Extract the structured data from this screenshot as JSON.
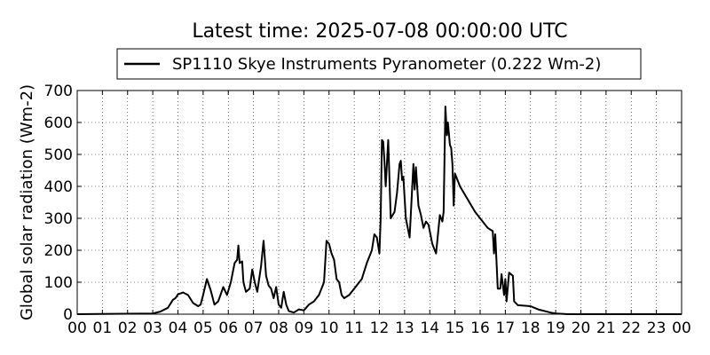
{
  "chart_data": {
    "type": "line",
    "title": "Latest time: 2025-07-08 00:00:00 UTC",
    "ylabel": "Global solar radiation (Wm-2)",
    "x": [
      0,
      3,
      3.3,
      3.6,
      3.8,
      3.9,
      4.0,
      4.2,
      4.4,
      4.6,
      4.8,
      4.9,
      5.0,
      5.15,
      5.3,
      5.45,
      5.6,
      5.8,
      5.95,
      6.1,
      6.25,
      6.35,
      6.4,
      6.45,
      6.55,
      6.6,
      6.7,
      6.85,
      6.95,
      7.05,
      7.15,
      7.3,
      7.4,
      7.5,
      7.6,
      7.7,
      7.8,
      7.9,
      8.0,
      8.1,
      8.2,
      8.3,
      8.4,
      8.6,
      8.8,
      9.0,
      9.2,
      9.4,
      9.6,
      9.8,
      9.9,
      10.0,
      10.1,
      10.2,
      10.3,
      10.4,
      10.5,
      10.6,
      10.8,
      11.0,
      11.3,
      11.5,
      11.7,
      11.8,
      11.9,
      12.0,
      12.05,
      12.1,
      12.15,
      12.2,
      12.25,
      12.35,
      12.45,
      12.6,
      12.7,
      12.8,
      12.85,
      12.9,
      12.95,
      13.05,
      13.2,
      13.35,
      13.4,
      13.45,
      13.55,
      13.65,
      13.75,
      13.85,
      13.95,
      14.1,
      14.25,
      14.4,
      14.5,
      14.55,
      14.62,
      14.68,
      14.72,
      14.8,
      14.85,
      14.9,
      14.95,
      15.0,
      15.2,
      15.5,
      15.8,
      16.1,
      16.3,
      16.5,
      16.55,
      16.6,
      16.7,
      16.8,
      16.85,
      16.95,
      17.0,
      17.05,
      17.15,
      17.3,
      17.35,
      17.5,
      18.0,
      18.3,
      18.8,
      19.0,
      19.5,
      24
    ],
    "series": [
      {
        "name": "SP1110 Skye Instruments Pyranometer (0.222 Wm-2)",
        "color": "#000000",
        "values": [
          0,
          2,
          8,
          20,
          45,
          50,
          62,
          68,
          60,
          35,
          25,
          30,
          60,
          110,
          75,
          30,
          40,
          85,
          60,
          100,
          160,
          170,
          215,
          160,
          165,
          100,
          70,
          80,
          140,
          100,
          70,
          150,
          230,
          120,
          90,
          80,
          50,
          85,
          30,
          20,
          70,
          30,
          10,
          5,
          15,
          12,
          30,
          40,
          60,
          100,
          230,
          220,
          190,
          170,
          110,
          100,
          60,
          50,
          60,
          80,
          110,
          160,
          200,
          250,
          240,
          190,
          300,
          545,
          540,
          480,
          400,
          545,
          300,
          320,
          380,
          470,
          480,
          420,
          430,
          300,
          240,
          470,
          390,
          460,
          340,
          310,
          270,
          290,
          280,
          220,
          190,
          310,
          290,
          320,
          650,
          560,
          600,
          530,
          520,
          470,
          340,
          440,
          400,
          360,
          320,
          290,
          270,
          260,
          190,
          250,
          80,
          80,
          125,
          60,
          110,
          40,
          130,
          120,
          40,
          28,
          25,
          15,
          5,
          2,
          0,
          0
        ]
      }
    ],
    "xlim": [
      0,
      24
    ],
    "xticks": [
      {
        "value": 0,
        "label": "00"
      },
      {
        "value": 1,
        "label": "01"
      },
      {
        "value": 2,
        "label": "02"
      },
      {
        "value": 3,
        "label": "03"
      },
      {
        "value": 4,
        "label": "04"
      },
      {
        "value": 5,
        "label": "05"
      },
      {
        "value": 6,
        "label": "06"
      },
      {
        "value": 7,
        "label": "07"
      },
      {
        "value": 8,
        "label": "08"
      },
      {
        "value": 9,
        "label": "09"
      },
      {
        "value": 10,
        "label": "10"
      },
      {
        "value": 11,
        "label": "11"
      },
      {
        "value": 12,
        "label": "12"
      },
      {
        "value": 13,
        "label": "13"
      },
      {
        "value": 14,
        "label": "14"
      },
      {
        "value": 15,
        "label": "15"
      },
      {
        "value": 16,
        "label": "16"
      },
      {
        "value": 17,
        "label": "17"
      },
      {
        "value": 18,
        "label": "18"
      },
      {
        "value": 19,
        "label": "19"
      },
      {
        "value": 20,
        "label": "20"
      },
      {
        "value": 21,
        "label": "21"
      },
      {
        "value": 22,
        "label": "22"
      },
      {
        "value": 23,
        "label": "23"
      },
      {
        "value": 24,
        "label": "00"
      }
    ],
    "ylim": [
      0,
      700
    ],
    "yticks": [
      0,
      100,
      200,
      300,
      400,
      500,
      600,
      700
    ],
    "grid": true
  }
}
